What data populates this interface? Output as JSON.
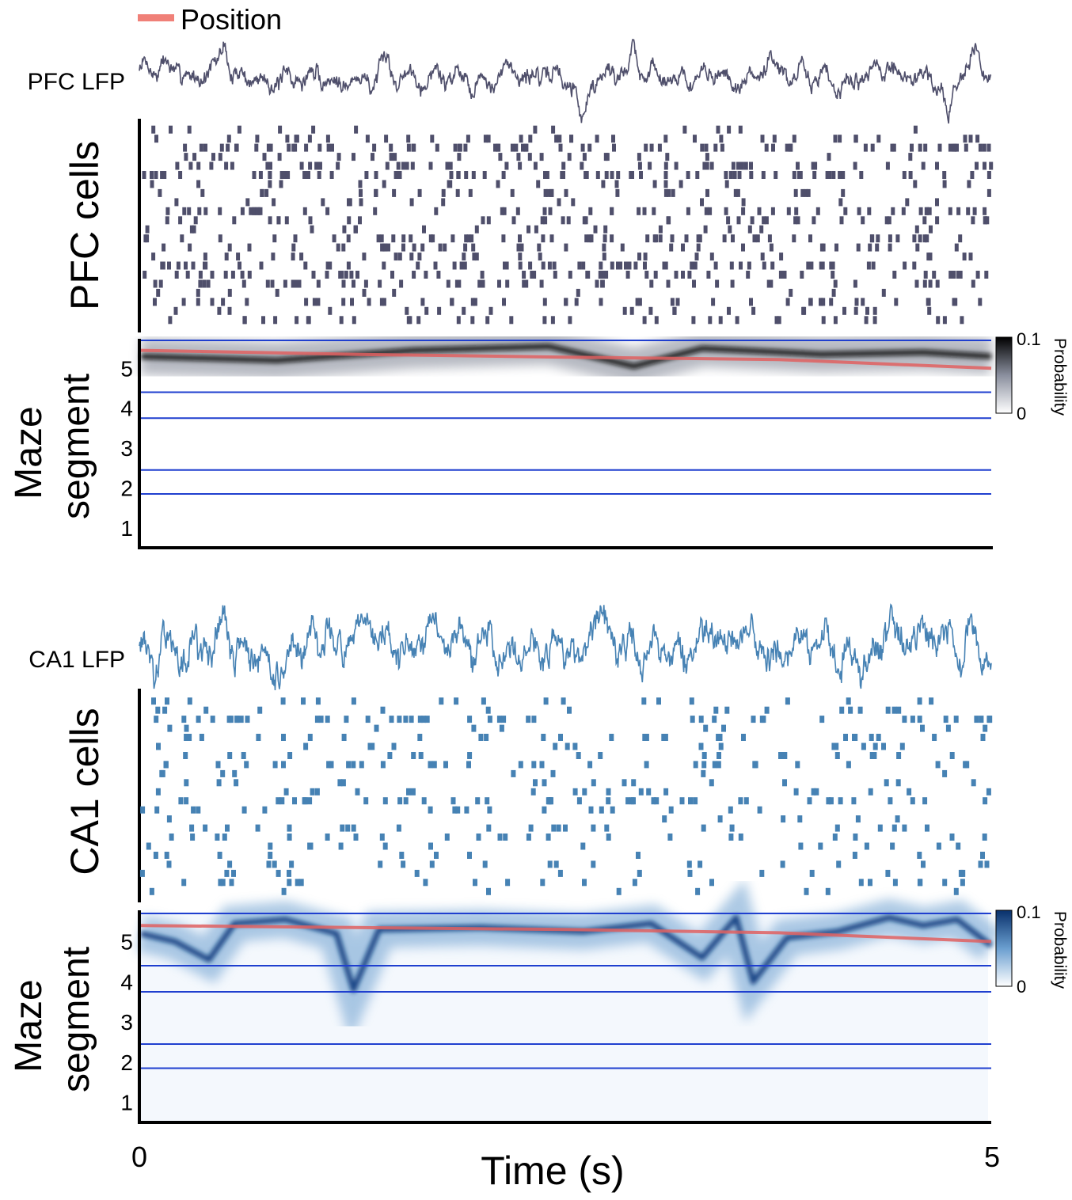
{
  "legend": {
    "label": "Position",
    "color": "#f08078"
  },
  "colors": {
    "pfc": "#4f4f6b",
    "ca1": "#4682b4",
    "position_line": "#e06060",
    "segment_boundary": "#1f3fcf",
    "pfc_colormap_high": "#000000",
    "ca1_colormap_high": "#08306b"
  },
  "xaxis": {
    "label": "Time (s)",
    "tick_labels": [
      "0",
      "5"
    ]
  },
  "chart_data": [
    {
      "type": "line",
      "panel": "pfc-lfp",
      "label": "PFC LFP",
      "xlim": [
        0,
        5
      ],
      "color": "#4f4f6b",
      "events": [
        {
          "time": 0.5,
          "amp": 1.6
        },
        {
          "time": 2.6,
          "amp": -2.0
        },
        {
          "time": 2.9,
          "amp": 1.5
        },
        {
          "time": 3.7,
          "amp": 1.3
        },
        {
          "time": 4.75,
          "amp": -1.8
        },
        {
          "time": 4.9,
          "amp": 1.4
        }
      ]
    },
    {
      "type": "scatter",
      "panel": "pfc-raster",
      "label": "PFC cells",
      "xlim": [
        0,
        5
      ],
      "n_cells": 22,
      "color": "#4f4f6b",
      "cell_rates_hz": [
        2,
        6,
        12,
        4,
        9,
        15,
        3,
        7,
        5,
        11,
        8,
        3,
        10,
        6,
        4,
        14,
        12,
        9,
        3,
        7,
        5,
        8
      ]
    },
    {
      "type": "heatmap",
      "panel": "pfc-decode",
      "ylabel_line1": "Maze",
      "ylabel_line2": "segment",
      "xlim": [
        0,
        5
      ],
      "ylim": [
        0.5,
        5.7
      ],
      "y_tick_labels": [
        "1",
        "2",
        "3",
        "4",
        "5"
      ],
      "y_tick_values": [
        1,
        2,
        3,
        4,
        5
      ],
      "segment_boundaries": [
        1.85,
        2.45,
        3.75,
        4.4,
        5.7
      ],
      "colorbar": {
        "label": "Probability",
        "max_label": "0.1",
        "min_label": "0",
        "range": [
          0,
          0.1
        ]
      },
      "position": {
        "x": [
          0,
          1.25,
          2.5,
          3.75,
          5
        ],
        "y": [
          5.45,
          5.35,
          5.28,
          5.22,
          5.0
        ]
      },
      "decoded_peak": {
        "x": [
          0,
          0.8,
          1.6,
          2.4,
          2.9,
          3.3,
          4.0,
          4.6,
          5.0
        ],
        "y": [
          5.3,
          5.2,
          5.45,
          5.55,
          5.05,
          5.5,
          5.35,
          5.4,
          5.3
        ]
      }
    },
    {
      "type": "line",
      "panel": "ca1-lfp",
      "label": "CA1 LFP",
      "xlim": [
        0,
        5
      ],
      "color": "#4682b4",
      "events": [
        {
          "time": 0.5,
          "amp": 1.8
        },
        {
          "time": 1.1,
          "amp": 1.2
        },
        {
          "time": 2.6,
          "amp": -1.6
        },
        {
          "time": 4.4,
          "amp": 1.1
        }
      ]
    },
    {
      "type": "scatter",
      "panel": "ca1-raster",
      "label": "CA1 cells",
      "xlim": [
        0,
        5
      ],
      "n_cells": 22,
      "color": "#4682b4",
      "cell_rates_hz": [
        4,
        3,
        6,
        2,
        5,
        3,
        4,
        5,
        2,
        3,
        4,
        6,
        3,
        2,
        5,
        4,
        3,
        2,
        4,
        3,
        5,
        2
      ]
    },
    {
      "type": "heatmap",
      "panel": "ca1-decode",
      "ylabel_line1": "Maze",
      "ylabel_line2": "segment",
      "xlim": [
        0,
        5
      ],
      "ylim": [
        0.5,
        5.7
      ],
      "y_tick_labels": [
        "1",
        "2",
        "3",
        "4",
        "5"
      ],
      "y_tick_values": [
        1,
        2,
        3,
        4,
        5
      ],
      "segment_boundaries": [
        1.85,
        2.45,
        3.75,
        4.4,
        5.7
      ],
      "colorbar": {
        "label": "Probability",
        "max_label": "0.1",
        "min_label": "0",
        "range": [
          0,
          0.1
        ]
      },
      "position": {
        "x": [
          0,
          1.25,
          2.5,
          3.75,
          5
        ],
        "y": [
          5.4,
          5.35,
          5.3,
          5.22,
          5.0
        ]
      },
      "decoded_peak": {
        "x": [
          0,
          0.2,
          0.4,
          0.55,
          0.85,
          1.15,
          1.25,
          1.4,
          2.0,
          2.6,
          3.0,
          3.3,
          3.5,
          3.6,
          3.8,
          4.1,
          4.4,
          4.6,
          4.8,
          5.0
        ],
        "y": [
          5.2,
          5.0,
          4.55,
          5.45,
          5.55,
          5.2,
          3.8,
          5.3,
          5.35,
          5.25,
          5.45,
          4.6,
          5.6,
          4.0,
          5.1,
          5.25,
          5.6,
          5.4,
          5.55,
          4.9
        ]
      }
    }
  ]
}
